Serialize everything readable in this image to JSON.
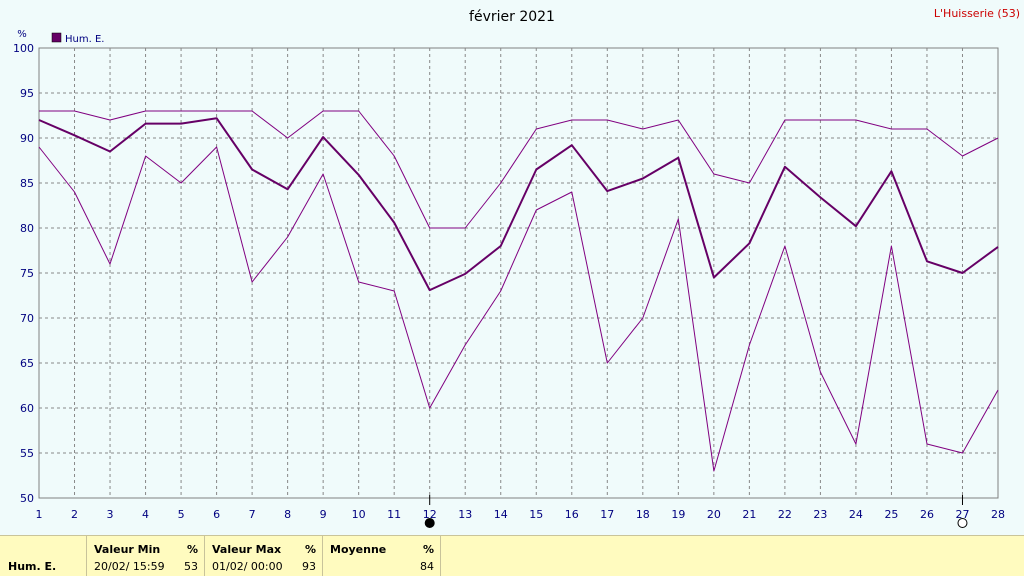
{
  "chart_data": {
    "type": "line",
    "title": "février 2021",
    "station": "L'Huisserie (53)",
    "y_unit": "%",
    "ylim": [
      50,
      100
    ],
    "y_ticks": [
      50,
      55,
      60,
      65,
      70,
      75,
      80,
      85,
      90,
      95,
      100
    ],
    "x": [
      1,
      2,
      3,
      4,
      5,
      6,
      7,
      8,
      9,
      10,
      11,
      12,
      13,
      14,
      15,
      16,
      17,
      18,
      19,
      20,
      21,
      22,
      23,
      24,
      25,
      26,
      27,
      28
    ],
    "xlim": [
      1,
      28
    ],
    "grid": true,
    "legend": {
      "position": "top-left",
      "label": "Hum. E.",
      "color": "#660066"
    },
    "series": [
      {
        "role": "max",
        "color": "#800080",
        "values": [
          93,
          93,
          92,
          93,
          93,
          93,
          93,
          90,
          93,
          93,
          88,
          80,
          80,
          85,
          91,
          92,
          92,
          91,
          92,
          86,
          85,
          92,
          92,
          92,
          91,
          91,
          88,
          90
        ]
      },
      {
        "role": "mean",
        "color": "#660066",
        "values": [
          92,
          90.3,
          88.5,
          91.6,
          91.6,
          92.2,
          86.5,
          84.3,
          90.1,
          85.9,
          80.6,
          73.1,
          74.9,
          78,
          86.5,
          89.2,
          84.1,
          85.5,
          87.8,
          74.5,
          78.3,
          86.8,
          83.4,
          80.2,
          86.3,
          76.3,
          75,
          77.9
        ]
      },
      {
        "role": "min",
        "color": "#800080",
        "values": [
          89,
          84,
          76,
          88,
          85,
          89,
          74,
          79,
          86,
          74,
          73,
          60,
          67,
          73,
          82,
          84,
          65,
          70,
          81,
          53,
          67,
          78,
          64,
          56,
          78,
          56,
          55,
          62
        ]
      }
    ],
    "moon_markers": [
      {
        "day": 12,
        "phase": "new-moon"
      },
      {
        "day": 27,
        "phase": "full-moon"
      }
    ]
  },
  "stats": {
    "series_label": "Hum. E.",
    "min": {
      "header": "Valeur Min",
      "unit": "%",
      "date": "20/02/  15:59",
      "value": "53"
    },
    "max": {
      "header": "Valeur Max",
      "unit": "%",
      "date": "01/02/  00:00",
      "value": "93"
    },
    "mean": {
      "header": "Moyenne",
      "unit": "%",
      "value": "84"
    }
  }
}
